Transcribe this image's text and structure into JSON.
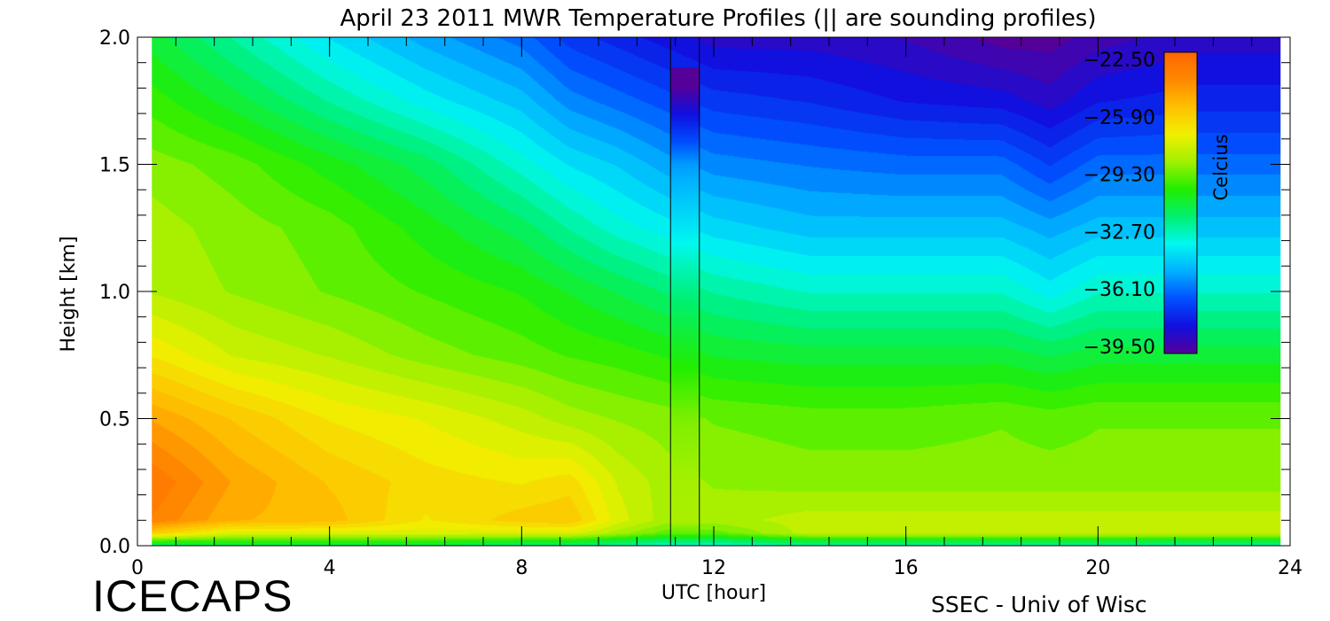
{
  "chart_data": {
    "type": "heatmap",
    "title": "April 23 2011 MWR Temperature Profiles (||  are sounding profiles)",
    "xlabel": "UTC [hour]",
    "ylabel": "Height [km]",
    "xlim": [
      0,
      24
    ],
    "ylim": [
      0,
      2.0
    ],
    "x_ticks": [
      0,
      4,
      8,
      12,
      16,
      20,
      24
    ],
    "x_tick_labels": [
      "0",
      "4",
      "8",
      "12",
      "16",
      "20",
      "24"
    ],
    "y_ticks": [
      0,
      0.5,
      1.0,
      1.5,
      2.0
    ],
    "y_tick_labels": [
      "0.0",
      "0.5",
      "1.0",
      "1.5",
      "2.0"
    ],
    "data_coverage_hours": [
      0.3,
      23.8
    ],
    "sounding_profiles": [
      {
        "x_start": 11.1,
        "x_end": 11.7,
        "top_km": 1.88
      }
    ],
    "colorbar": {
      "label": "Celcius",
      "range": [
        -39.5,
        -22.5
      ],
      "tick_labels": [
        "-22.50",
        "-25.90",
        "-29.30",
        "-32.70",
        "-36.10",
        "-39.50"
      ],
      "colors": [
        "#550099",
        "#1010e0",
        "#0050ff",
        "#00b0ff",
        "#00f8f0",
        "#00f070",
        "#22ee00",
        "#a0f000",
        "#f0f000",
        "#ffc000",
        "#ff8800",
        "#ff6600"
      ]
    },
    "temperature_field_celsius": {
      "x_hours": [
        0.3,
        2,
        4,
        6,
        8,
        9,
        10,
        11,
        12,
        14,
        16,
        18,
        19,
        20,
        22,
        23.8
      ],
      "y_km": [
        0.0,
        0.05,
        0.1,
        0.25,
        0.5,
        0.75,
        1.0,
        1.25,
        1.5,
        1.75,
        2.0
      ],
      "values": [
        [
          -32.0,
          -31.5,
          -31.5,
          -31.5,
          -32.0,
          -32.0,
          -32.5,
          -33.0,
          -33.0,
          -32.5,
          -32.5,
          -32.5,
          -32.5,
          -32.5,
          -32.5,
          -32.5
        ],
        [
          -26.0,
          -27.5,
          -27.5,
          -27.5,
          -27.5,
          -27.5,
          -28.5,
          -29.5,
          -29.5,
          -28.0,
          -28.0,
          -28.0,
          -28.0,
          -28.0,
          -28.0,
          -28.0
        ],
        [
          -23.8,
          -25.2,
          -25.5,
          -26.8,
          -26.0,
          -25.8,
          -27.5,
          -28.5,
          -28.5,
          -28.0,
          -28.0,
          -28.0,
          -28.0,
          -28.0,
          -28.0,
          -28.0
        ],
        [
          -23.3,
          -24.8,
          -25.8,
          -26.5,
          -26.8,
          -26.5,
          -27.8,
          -28.5,
          -28.8,
          -29.0,
          -29.0,
          -29.0,
          -29.0,
          -29.0,
          -29.0,
          -29.0
        ],
        [
          -24.8,
          -25.8,
          -26.8,
          -27.3,
          -28.0,
          -28.5,
          -28.8,
          -29.0,
          -29.3,
          -29.5,
          -29.5,
          -29.3,
          -29.5,
          -29.3,
          -29.3,
          -29.3
        ],
        [
          -26.8,
          -27.8,
          -28.3,
          -29.0,
          -29.5,
          -29.8,
          -30.0,
          -30.3,
          -30.8,
          -31.0,
          -31.0,
          -31.0,
          -31.3,
          -31.0,
          -31.0,
          -31.0
        ],
        [
          -28.3,
          -28.8,
          -29.3,
          -29.8,
          -30.3,
          -30.8,
          -31.3,
          -31.8,
          -32.3,
          -32.8,
          -32.8,
          -32.8,
          -33.5,
          -32.8,
          -32.8,
          -32.8
        ],
        [
          -28.5,
          -29.0,
          -29.5,
          -30.5,
          -31.5,
          -32.3,
          -33.0,
          -33.5,
          -34.0,
          -34.5,
          -34.5,
          -34.5,
          -35.0,
          -34.5,
          -34.5,
          -34.5
        ],
        [
          -29.0,
          -29.5,
          -30.5,
          -31.5,
          -33.0,
          -33.8,
          -34.3,
          -35.0,
          -35.5,
          -35.8,
          -36.0,
          -36.0,
          -36.8,
          -36.0,
          -36.0,
          -36.0
        ],
        [
          -30.0,
          -31.0,
          -32.3,
          -33.5,
          -34.5,
          -35.5,
          -36.0,
          -36.5,
          -37.0,
          -37.3,
          -37.8,
          -38.0,
          -38.5,
          -37.8,
          -37.5,
          -37.5
        ],
        [
          -31.0,
          -32.3,
          -33.8,
          -35.0,
          -36.0,
          -37.0,
          -37.5,
          -38.0,
          -38.5,
          -38.5,
          -38.8,
          -39.5,
          -39.5,
          -39.0,
          -38.5,
          -38.5
        ]
      ]
    }
  },
  "footer": {
    "logo_text": "ICECAPS",
    "credit_text": "SSEC - Univ of Wisc"
  }
}
